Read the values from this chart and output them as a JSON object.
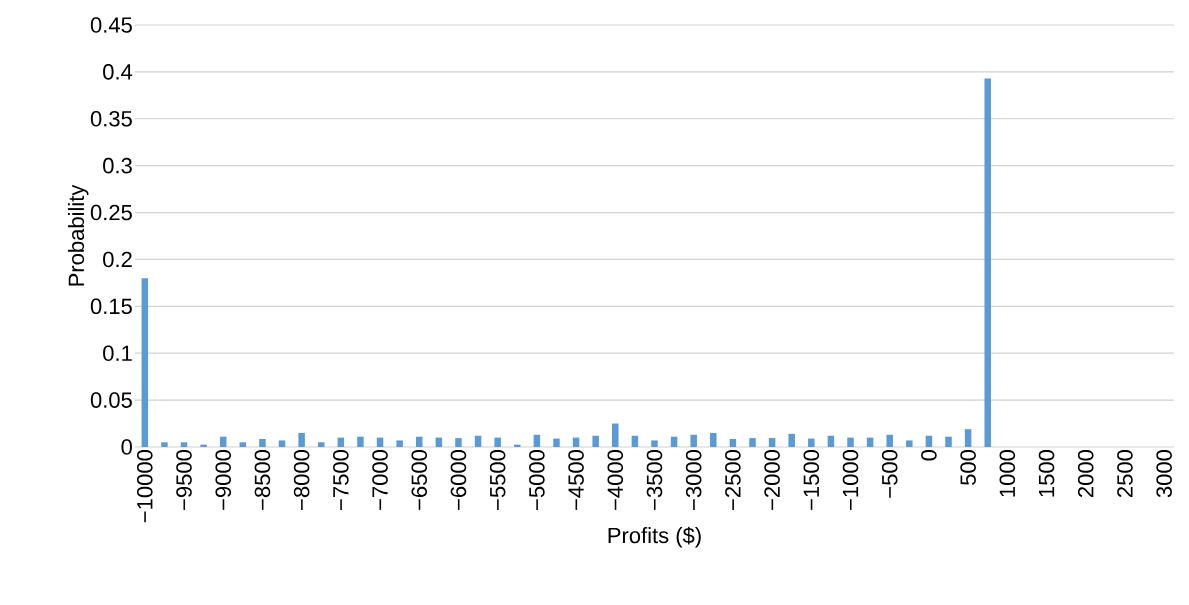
{
  "chart_data": {
    "type": "bar",
    "xlabel": "Profits ($)",
    "ylabel": "Probability",
    "categories": [
      "−10000",
      null,
      "−9500",
      null,
      "−9000",
      null,
      "−8500",
      null,
      "−8000",
      null,
      "−7500",
      null,
      "−7000",
      null,
      "−6500",
      null,
      "−6000",
      null,
      "−5500",
      null,
      "−5000",
      null,
      "−4500",
      null,
      "−4000",
      null,
      "−3500",
      null,
      "−3000",
      null,
      "−2500",
      null,
      "−2000",
      null,
      "−1500",
      null,
      "−1000",
      null,
      "−500",
      null,
      "0",
      null,
      "500",
      null,
      "1000",
      null,
      "1500",
      null,
      "2000",
      null,
      "2500",
      null,
      "3000"
    ],
    "values": [
      0.18,
      0.005,
      0.005,
      0.0025,
      0.011,
      0.005,
      0.0085,
      0.007,
      0.015,
      0.005,
      0.01,
      0.011,
      0.01,
      0.007,
      0.011,
      0.01,
      0.0095,
      0.012,
      0.01,
      0.0025,
      0.013,
      0.009,
      0.01,
      0.012,
      0.025,
      0.012,
      0.007,
      0.011,
      0.013,
      0.015,
      0.0085,
      0.0095,
      0.0095,
      0.014,
      0.009,
      0.012,
      0.01,
      0.01,
      0.013,
      0.007,
      0.012,
      0.011,
      0.019,
      0.393,
      0,
      0,
      0,
      0,
      0,
      0,
      0,
      0,
      0
    ],
    "color": "#5b9bd5",
    "ylim": [
      0,
      0.45
    ],
    "yticks": [
      0,
      0.05,
      0.1,
      0.15,
      0.2,
      0.25,
      0.3,
      0.35,
      0.4,
      0.45
    ],
    "grid": "y"
  }
}
